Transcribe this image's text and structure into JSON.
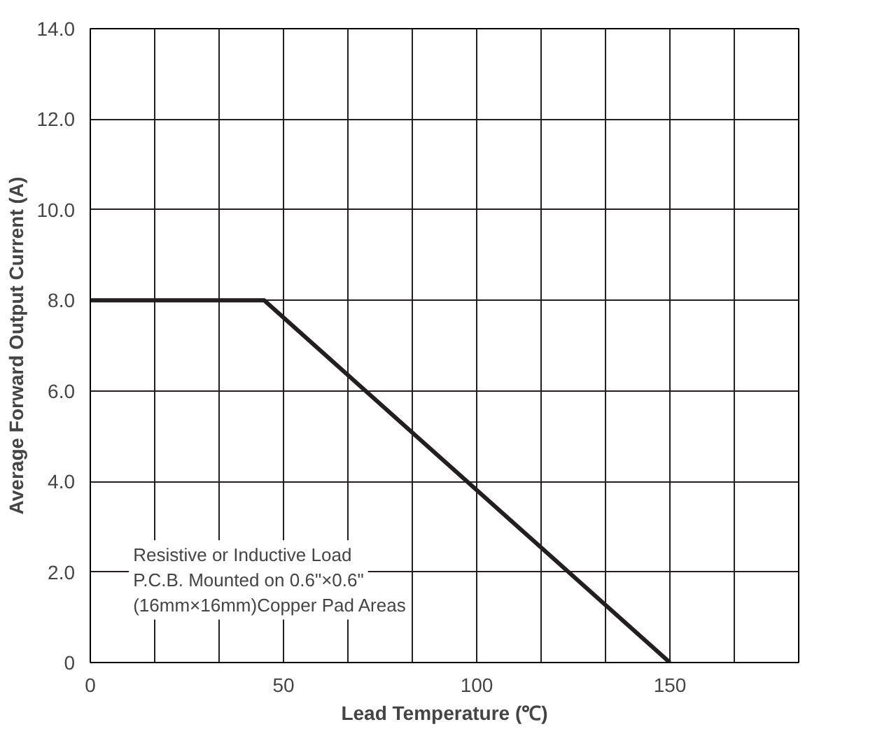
{
  "chart_data": {
    "type": "line",
    "xlabel": "Lead Temperature (℃)",
    "ylabel": "Average Forward Output Current (A)",
    "x": [
      0,
      45,
      150
    ],
    "series": [
      {
        "color": "#231f20",
        "values": [
          8.0,
          8.0,
          0
        ]
      }
    ],
    "xlim": [
      0,
      183.33
    ],
    "ylim": [
      0,
      14
    ],
    "xticks": [
      0,
      {
        "value": 16.67,
        "label": null
      },
      {
        "value": 33.33,
        "label": null
      },
      50,
      {
        "value": 66.67,
        "label": null
      },
      {
        "value": 83.33,
        "label": null
      },
      100,
      {
        "value": 116.67,
        "label": null
      },
      {
        "value": 133.33,
        "label": null
      },
      150,
      {
        "value": 166.67,
        "label": null
      }
    ],
    "yticks": [
      0,
      {
        "value": 2,
        "label": "2.0"
      },
      {
        "value": 4,
        "label": "4.0"
      },
      {
        "value": 6,
        "label": "6.0"
      },
      {
        "value": 8,
        "label": "8.0"
      },
      {
        "value": 10,
        "label": "10.0"
      },
      {
        "value": 12,
        "label": "12.0"
      },
      {
        "value": 14,
        "label": "14.0"
      }
    ],
    "grid": true,
    "marker": "none",
    "line_style": "solid",
    "annotations": [
      "Resistive or Inductive Load",
      "P.C.B. Mounted on 0.6\"×0.6\"",
      "(16mm×16mm)Copper Pad Areas"
    ]
  }
}
